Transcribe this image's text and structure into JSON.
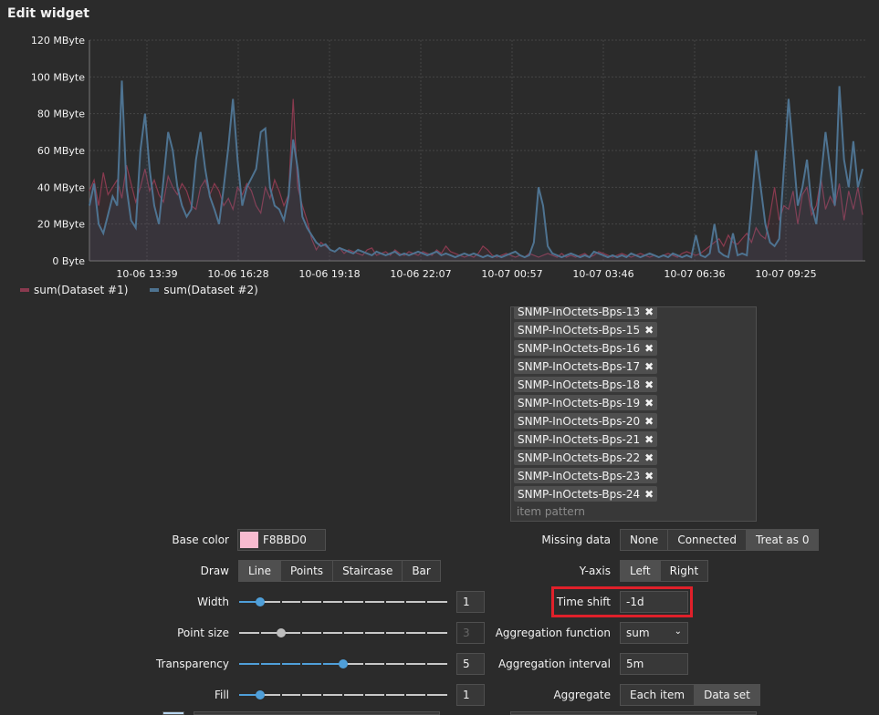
{
  "header": {
    "title": "Edit widget"
  },
  "colors": {
    "series1": "#8a3a4f",
    "series2": "#4e7391",
    "accent": "#4f9fd9",
    "highlight": "#e0202a",
    "base_color": "#F8BBD0"
  },
  "chart_data": {
    "type": "area",
    "yticks": [
      "0 Byte",
      "20 MByte",
      "40 MByte",
      "60 MByte",
      "80 MByte",
      "100 MByte",
      "120 MByte"
    ],
    "ylim": [
      0,
      120
    ],
    "xticks": [
      "10-06 13:39",
      "10-06 16:28",
      "10-06 19:18",
      "10-06 22:07",
      "10-07 00:57",
      "10-07 03:46",
      "10-07 06:36",
      "10-07 09:25"
    ],
    "grid": true,
    "legend_position": "bottom-left",
    "series": [
      {
        "name": "sum(Dataset #1)",
        "color": "#8a3a4f",
        "values": [
          38,
          44,
          30,
          48,
          36,
          40,
          44,
          34,
          52,
          42,
          32,
          40,
          50,
          38,
          44,
          36,
          32,
          46,
          40,
          36,
          42,
          38,
          30,
          28,
          40,
          44,
          36,
          42,
          38,
          30,
          34,
          28,
          40,
          36,
          42,
          38,
          30,
          26,
          40,
          34,
          44,
          38,
          30,
          36,
          88,
          40,
          30,
          22,
          12,
          6,
          10,
          8,
          6,
          5,
          7,
          4,
          6,
          5,
          4,
          3,
          6,
          7,
          3,
          4,
          5,
          3,
          6,
          4,
          3,
          5,
          4,
          3,
          5,
          4,
          3,
          6,
          4,
          8,
          5,
          4,
          3,
          2,
          3,
          2,
          4,
          8,
          6,
          3,
          2,
          3,
          4,
          3,
          2,
          3,
          2,
          4,
          3,
          2,
          3,
          4,
          3,
          2,
          4,
          2,
          3,
          2,
          3,
          4,
          2,
          3,
          5,
          4,
          3,
          2,
          3,
          4,
          3,
          2,
          3,
          4,
          3,
          2,
          3,
          2,
          3,
          4,
          3,
          2,
          4,
          5,
          4,
          3,
          4,
          6,
          8,
          10,
          12,
          8,
          14,
          10,
          9,
          12,
          15,
          10,
          18,
          14,
          12,
          25,
          40,
          22,
          30,
          28,
          38,
          20,
          36,
          40,
          25,
          30,
          45,
          28,
          35,
          30,
          42,
          22,
          38,
          28,
          40,
          25
        ]
      },
      {
        "name": "sum(Dataset #2)",
        "color": "#4e7391",
        "values": [
          30,
          42,
          20,
          15,
          25,
          35,
          30,
          98,
          40,
          22,
          18,
          60,
          80,
          50,
          30,
          20,
          44,
          70,
          60,
          40,
          30,
          24,
          28,
          55,
          70,
          50,
          35,
          28,
          20,
          40,
          62,
          88,
          55,
          30,
          40,
          45,
          50,
          70,
          72,
          40,
          30,
          28,
          22,
          35,
          66,
          50,
          24,
          18,
          14,
          10,
          8,
          9,
          6,
          5,
          7,
          6,
          5,
          4,
          6,
          5,
          4,
          3,
          5,
          4,
          3,
          4,
          5,
          3,
          4,
          3,
          4,
          5,
          4,
          3,
          4,
          5,
          3,
          4,
          3,
          2,
          3,
          4,
          3,
          4,
          3,
          2,
          3,
          2,
          3,
          2,
          3,
          4,
          5,
          3,
          2,
          3,
          10,
          40,
          30,
          8,
          4,
          3,
          2,
          3,
          4,
          3,
          2,
          3,
          2,
          5,
          4,
          3,
          2,
          3,
          2,
          3,
          2,
          4,
          3,
          2,
          3,
          4,
          3,
          2,
          3,
          2,
          4,
          3,
          2,
          3,
          2,
          14,
          3,
          2,
          4,
          20,
          5,
          3,
          2,
          15,
          3,
          4,
          3,
          30,
          60,
          40,
          20,
          10,
          8,
          12,
          50,
          88,
          60,
          30,
          40,
          55,
          30,
          20,
          45,
          70,
          50,
          30,
          95,
          55,
          40,
          65,
          40,
          50
        ]
      }
    ]
  },
  "items": {
    "tags": [
      "SNMP-InOctets-Bps-13",
      "SNMP-InOctets-Bps-15",
      "SNMP-InOctets-Bps-16",
      "SNMP-InOctets-Bps-17",
      "SNMP-InOctets-Bps-18",
      "SNMP-InOctets-Bps-19",
      "SNMP-InOctets-Bps-20",
      "SNMP-InOctets-Bps-21",
      "SNMP-InOctets-Bps-22",
      "SNMP-InOctets-Bps-23",
      "SNMP-InOctets-Bps-24"
    ],
    "placeholder": "item pattern"
  },
  "form": {
    "base_color": {
      "label": "Base color",
      "value": "F8BBD0"
    },
    "draw": {
      "label": "Draw",
      "options": [
        "Line",
        "Points",
        "Staircase",
        "Bar"
      ],
      "selected": "Line"
    },
    "width": {
      "label": "Width",
      "value": "1",
      "level": 0.1
    },
    "point_size": {
      "label": "Point size",
      "value": "3",
      "level": 0.2
    },
    "transparency": {
      "label": "Transparency",
      "value": "5",
      "level": 0.5
    },
    "fill": {
      "label": "Fill",
      "value": "1",
      "level": 0.1
    },
    "missing_data": {
      "label": "Missing data",
      "options": [
        "None",
        "Connected",
        "Treat as 0"
      ],
      "selected": "Treat as 0"
    },
    "y_axis": {
      "label": "Y-axis",
      "options": [
        "Left",
        "Right"
      ],
      "selected": "Left"
    },
    "time_shift": {
      "label": "Time shift",
      "value": "-1d"
    },
    "aggregation_function": {
      "label": "Aggregation function",
      "value": "sum"
    },
    "aggregation_interval": {
      "label": "Aggregation interval",
      "value": "5m"
    },
    "aggregate": {
      "label": "Aggregate",
      "options": [
        "Each item",
        "Data set"
      ],
      "selected": "Data set"
    }
  }
}
